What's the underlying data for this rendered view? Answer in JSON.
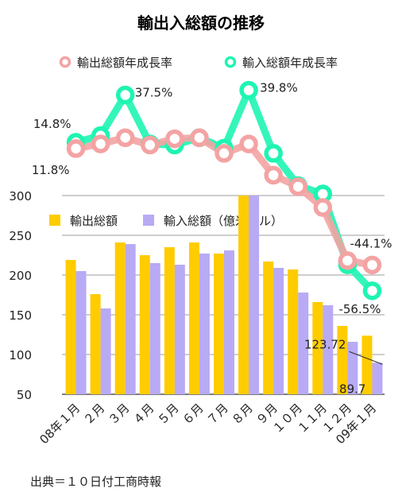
{
  "chart_data": {
    "type": "bar+line",
    "title": "輸出入総額の推移",
    "source": "出典＝１０日付工商時報",
    "categories": [
      "08年１月",
      "２月",
      "３月",
      "４月",
      "５月",
      "６月",
      "７月",
      "８月",
      "９月",
      "１０月",
      "１１月",
      "１２月",
      "09年１月"
    ],
    "bar_series": [
      {
        "name": "輸出総額",
        "color": "#ffcc00",
        "values": [
          219,
          176,
          241,
          225,
          235,
          241,
          227,
          302,
          217,
          207,
          166,
          136,
          123.72
        ]
      },
      {
        "name": "輸入総額（億米ドル）",
        "color": "#b8aaf5",
        "values": [
          205,
          158,
          239,
          215,
          213,
          227,
          231,
          300,
          209,
          178,
          162,
          116,
          89.7
        ]
      }
    ],
    "line_series": [
      {
        "name": "輸出総額年成長率",
        "color": "#f4a3a3",
        "values": [
          11.8,
          14.0,
          17.0,
          13.5,
          16.5,
          17.0,
          9.5,
          14.0,
          -1.0,
          -6.5,
          -16.5,
          -42.0,
          -44.1
        ]
      },
      {
        "name": "輸入総額年成長率",
        "color": "#1ef5b2",
        "values": [
          14.8,
          18.0,
          37.5,
          14.0,
          13.5,
          17.0,
          12.0,
          39.8,
          9.5,
          -6.0,
          -10.0,
          -44.0,
          -56.5
        ]
      }
    ],
    "y_axis": {
      "ticks": [
        50,
        100,
        150,
        200,
        250,
        300
      ],
      "range": [
        50,
        300
      ],
      "grid": true
    },
    "bar_labels": [
      {
        "text": "123.72",
        "series": 0,
        "index": 12
      },
      {
        "text": "89.7",
        "series": 1,
        "index": 12
      }
    ],
    "line_labels": [
      {
        "text": "11.8%",
        "series": 0,
        "index": 0
      },
      {
        "text": "14.8%",
        "series": 1,
        "index": 0
      },
      {
        "text": "37.5%",
        "series": 1,
        "index": 2
      },
      {
        "text": "39.8%",
        "series": 1,
        "index": 7
      },
      {
        "text": "-44.1%",
        "series": 0,
        "index": 12
      },
      {
        "text": "-56.5%",
        "series": 1,
        "index": 12
      }
    ]
  }
}
